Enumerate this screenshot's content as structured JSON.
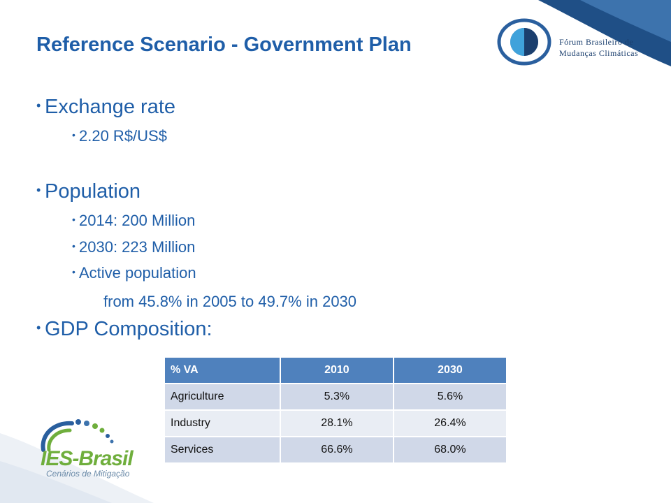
{
  "slide": {
    "title": "Reference Scenario - Government Plan"
  },
  "logos": {
    "forum": {
      "line1": "Fórum Brasileiro de",
      "line2": "Mudanças Climáticas"
    },
    "ies": {
      "name": "IES-Brasil",
      "tagline": "Cenários de Mitigação"
    }
  },
  "bullets": {
    "exchange": {
      "label": "Exchange rate",
      "items": [
        "2.20 R$/US$"
      ]
    },
    "population": {
      "label": "Population",
      "items": [
        "2014: 200 Million",
        "2030: 223 Million",
        "Active population"
      ],
      "continuation": "from 45.8% in 2005 to 49.7% in 2030"
    },
    "gdp": {
      "label": "GDP Composition:"
    }
  },
  "table": {
    "headers": [
      "% VA",
      "2010",
      "2030"
    ],
    "rows": [
      [
        "Agriculture",
        "5.3%",
        "5.6%"
      ],
      [
        "Industry",
        "28.1%",
        "26.4%"
      ],
      [
        "Services",
        "66.6%",
        "68.0%"
      ]
    ]
  },
  "colors": {
    "title": "#1f5ea8",
    "table_header": "#4f81bd",
    "table_row_odd": "#d0d8e8",
    "table_row_even": "#e9edf4",
    "brand_dark_blue": "#1b3f6e",
    "brand_green": "#6fae3c"
  }
}
